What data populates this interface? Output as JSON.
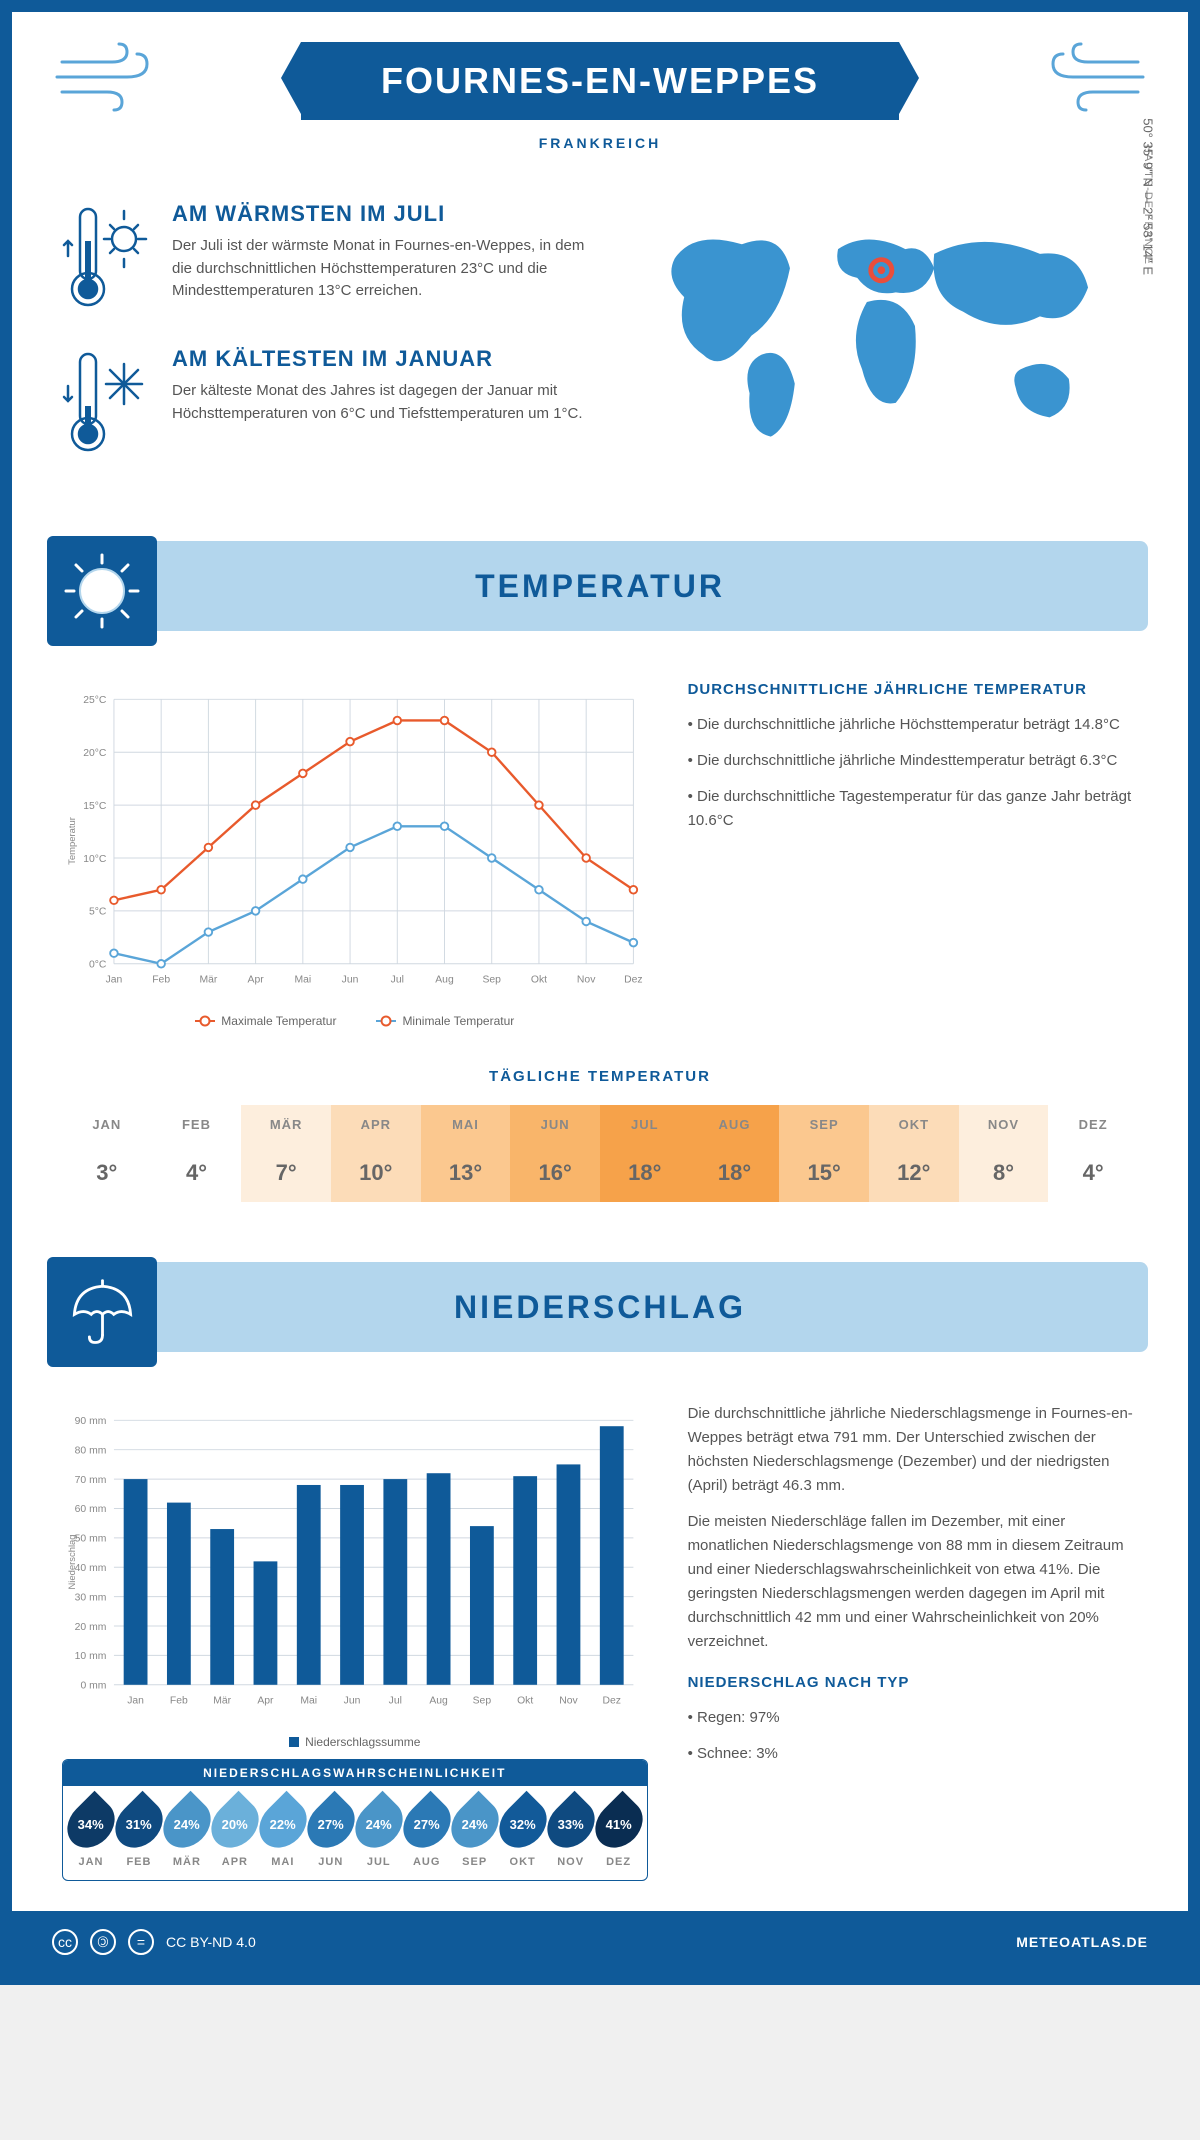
{
  "header": {
    "title": "FOURNES-EN-WEPPES",
    "subtitle": "FRANKREICH"
  },
  "facts": {
    "warm": {
      "title": "AM WÄRMSTEN IM JULI",
      "text": "Der Juli ist der wärmste Monat in Fournes-en-Weppes, in dem die durchschnittlichen Höchsttemperaturen 23°C und die Mindesttemperaturen 13°C erreichen."
    },
    "cold": {
      "title": "AM KÄLTESTEN IM JANUAR",
      "text": "Der kälteste Monat des Jahres ist dagegen der Januar mit Höchsttemperaturen von 6°C und Tiefsttemperaturen um 1°C."
    }
  },
  "location": {
    "coords": "50° 35' 9\" N — 2° 53' 14\" E",
    "region": "HAUTS-DE-FRANCE",
    "marker_color": "#e94e3c",
    "map_color": "#3a94d0"
  },
  "sections": {
    "temperature": "TEMPERATUR",
    "precipitation": "NIEDERSCHLAG"
  },
  "temperature_chart": {
    "type": "line",
    "months": [
      "Jan",
      "Feb",
      "Mär",
      "Apr",
      "Mai",
      "Jun",
      "Jul",
      "Aug",
      "Sep",
      "Okt",
      "Nov",
      "Dez"
    ],
    "max_values": [
      6,
      7,
      11,
      15,
      18,
      21,
      23,
      23,
      20,
      15,
      10,
      7
    ],
    "min_values": [
      1,
      0,
      3,
      5,
      8,
      11,
      13,
      13,
      10,
      7,
      4,
      2
    ],
    "max_color": "#e85a2c",
    "min_color": "#5aa5d8",
    "grid_color": "#d0d8e0",
    "ylim": [
      0,
      25
    ],
    "ytick_step": 5,
    "ylabel": "Temperatur",
    "legend_max": "Maximale Temperatur",
    "legend_min": "Minimale Temperatur"
  },
  "temperature_text": {
    "heading": "DURCHSCHNITTLICHE JÄHRLICHE TEMPERATUR",
    "lines": [
      "• Die durchschnittliche jährliche Höchsttemperatur beträgt 14.8°C",
      "• Die durchschnittliche jährliche Mindesttemperatur beträgt 6.3°C",
      "• Die durchschnittliche Tagestemperatur für das ganze Jahr beträgt 10.6°C"
    ]
  },
  "daily_temp": {
    "heading": "TÄGLICHE TEMPERATUR",
    "months": [
      "JAN",
      "FEB",
      "MÄR",
      "APR",
      "MAI",
      "JUN",
      "JUL",
      "AUG",
      "SEP",
      "OKT",
      "NOV",
      "DEZ"
    ],
    "values": [
      "3°",
      "4°",
      "7°",
      "10°",
      "13°",
      "16°",
      "18°",
      "18°",
      "15°",
      "12°",
      "8°",
      "4°"
    ],
    "cell_colors": [
      "#ffffff",
      "#ffffff",
      "#fdeedd",
      "#fcdcb8",
      "#fbc88f",
      "#f9b56a",
      "#f6a24a",
      "#f6a24a",
      "#fbc88f",
      "#fcdcb8",
      "#fdeedd",
      "#ffffff"
    ]
  },
  "precip_chart": {
    "type": "bar",
    "months": [
      "Jan",
      "Feb",
      "Mär",
      "Apr",
      "Mai",
      "Jun",
      "Jul",
      "Aug",
      "Sep",
      "Okt",
      "Nov",
      "Dez"
    ],
    "values": [
      70,
      62,
      53,
      42,
      68,
      68,
      70,
      72,
      54,
      71,
      75,
      88
    ],
    "bar_color": "#0f5a99",
    "grid_color": "#d0d8e0",
    "ylim": [
      0,
      90
    ],
    "ytick_step": 10,
    "ylabel": "Niederschlag",
    "legend": "Niederschlagssumme"
  },
  "precip_text": {
    "para1": "Die durchschnittliche jährliche Niederschlagsmenge in Fournes-en-Weppes beträgt etwa 791 mm. Der Unterschied zwischen der höchsten Niederschlagsmenge (Dezember) und der niedrigsten (April) beträgt 46.3 mm.",
    "para2": "Die meisten Niederschläge fallen im Dezember, mit einer monatlichen Niederschlagsmenge von 88 mm in diesem Zeitraum und einer Niederschlagswahrscheinlichkeit von etwa 41%. Die geringsten Niederschlagsmengen werden dagegen im April mit durchschnittlich 42 mm und einer Wahrscheinlichkeit von 20% verzeichnet.",
    "type_heading": "NIEDERSCHLAG NACH TYP",
    "type_lines": [
      "• Regen: 97%",
      "• Schnee: 3%"
    ]
  },
  "precip_prob": {
    "title": "NIEDERSCHLAGSWAHRSCHEINLICHKEIT",
    "months": [
      "JAN",
      "FEB",
      "MÄR",
      "APR",
      "MAI",
      "JUN",
      "JUL",
      "AUG",
      "SEP",
      "OKT",
      "NOV",
      "DEZ"
    ],
    "values": [
      "34%",
      "31%",
      "24%",
      "20%",
      "22%",
      "27%",
      "24%",
      "27%",
      "24%",
      "32%",
      "33%",
      "41%"
    ],
    "colors": [
      "#0d3a66",
      "#0f4a80",
      "#4a95c8",
      "#6bb0da",
      "#5aa5d8",
      "#2b79b5",
      "#4a95c8",
      "#2b79b5",
      "#4a95c8",
      "#125a99",
      "#0f4a80",
      "#0a2d52"
    ]
  },
  "footer": {
    "license": "CC BY-ND 4.0",
    "site": "METEOATLAS.DE"
  },
  "colors": {
    "primary": "#0f5a99",
    "light": "#b3d6ed"
  }
}
